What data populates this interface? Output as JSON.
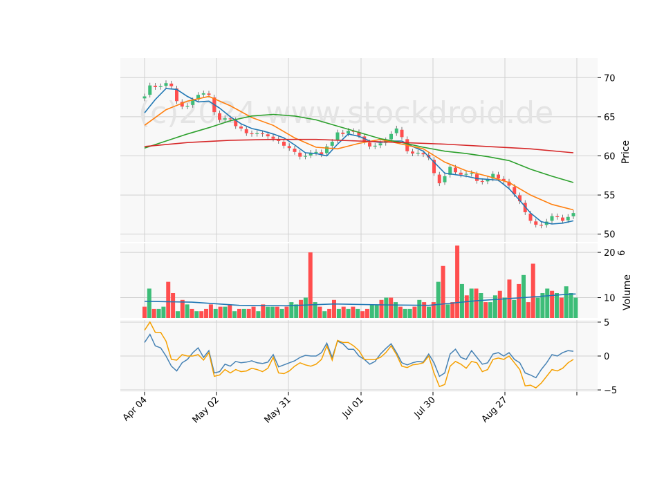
{
  "watermark": "(c)2024 www.stockdroid.de",
  "colors": {
    "up": "#3dbd78",
    "down": "#ff4e4e",
    "ma_short": "#1f77b4",
    "ma_mid": "#ff7f0e",
    "ma_long": "#2ca02c",
    "ma_200": "#d62728",
    "vol_ma": "#1f77b4",
    "osc_a": "#4682b4",
    "osc_b": "#f5a000",
    "grid": "#d0d0d0",
    "panel": "#f8f8f8"
  },
  "chart_data": [
    {
      "type": "candlestick",
      "ylabel": "Price",
      "ylim": [
        49,
        72.5
      ],
      "yticks": [
        50,
        55,
        60,
        65,
        70
      ],
      "x_tick_labels": [
        "Apr 04",
        "May 02",
        "May 31",
        "Jul 01",
        "Jul 30",
        "Aug 27"
      ],
      "grid": true,
      "ohlc_points": [
        [
          0,
          67.6
        ],
        [
          2,
          69.0
        ],
        [
          4,
          68.8
        ],
        [
          6,
          68.9
        ],
        [
          8,
          69.3
        ],
        [
          10,
          68.9
        ],
        [
          12,
          67.0
        ],
        [
          14,
          66.3
        ],
        [
          16,
          66.4
        ],
        [
          18,
          67.1
        ],
        [
          20,
          67.8
        ],
        [
          22,
          68.0
        ],
        [
          24,
          67.8
        ],
        [
          26,
          65.6
        ],
        [
          28,
          64.6
        ],
        [
          30,
          64.8
        ],
        [
          32,
          64.7
        ],
        [
          34,
          63.8
        ],
        [
          36,
          63.5
        ],
        [
          38,
          62.9
        ],
        [
          40,
          62.8
        ],
        [
          42,
          62.9
        ],
        [
          44,
          62.8
        ],
        [
          46,
          62.5
        ],
        [
          48,
          62.2
        ],
        [
          50,
          61.9
        ],
        [
          52,
          61.3
        ],
        [
          54,
          61.0
        ],
        [
          56,
          60.5
        ],
        [
          58,
          59.9
        ],
        [
          60,
          60.0
        ],
        [
          62,
          60.4
        ],
        [
          64,
          60.5
        ],
        [
          66,
          60.2
        ],
        [
          68,
          61.2
        ],
        [
          70,
          61.8
        ],
        [
          72,
          63.0
        ],
        [
          74,
          62.8
        ],
        [
          76,
          63.2
        ],
        [
          78,
          63.1
        ],
        [
          80,
          62.6
        ],
        [
          82,
          61.8
        ],
        [
          84,
          61.2
        ],
        [
          86,
          61.3
        ],
        [
          88,
          61.6
        ],
        [
          90,
          62.0
        ],
        [
          92,
          62.8
        ],
        [
          94,
          63.5
        ],
        [
          96,
          62.4
        ],
        [
          98,
          60.6
        ],
        [
          100,
          60.3
        ],
        [
          102,
          60.4
        ],
        [
          104,
          60.2
        ],
        [
          106,
          59.8
        ],
        [
          108,
          57.8
        ],
        [
          110,
          56.5
        ],
        [
          112,
          57.4
        ],
        [
          114,
          58.6
        ],
        [
          116,
          57.9
        ],
        [
          118,
          57.6
        ],
        [
          120,
          57.7
        ],
        [
          122,
          57.8
        ],
        [
          124,
          56.8
        ],
        [
          126,
          56.7
        ],
        [
          128,
          57.0
        ],
        [
          130,
          57.7
        ],
        [
          132,
          57.1
        ],
        [
          134,
          56.8
        ],
        [
          136,
          56.2
        ],
        [
          138,
          55.1
        ],
        [
          140,
          54.2
        ],
        [
          142,
          52.8
        ],
        [
          144,
          51.7
        ],
        [
          146,
          51.2
        ],
        [
          148,
          51.1
        ],
        [
          150,
          51.6
        ],
        [
          152,
          52.3
        ],
        [
          154,
          52.2
        ],
        [
          156,
          51.7
        ],
        [
          158,
          52.2
        ],
        [
          160,
          52.7
        ]
      ],
      "series": [
        {
          "name": "",
          "color_key": "ma_short",
          "x": [
            0,
            4,
            8,
            12,
            16,
            20,
            24,
            28,
            32,
            36,
            40,
            44,
            48,
            52,
            56,
            60,
            64,
            68,
            72,
            76,
            80,
            84,
            88,
            92,
            96,
            100,
            104,
            108,
            112,
            116,
            120,
            124,
            128,
            132,
            136,
            140,
            144,
            148,
            152,
            156,
            160
          ],
          "values": [
            65.5,
            67.2,
            68.6,
            68.5,
            67.6,
            66.9,
            67.0,
            66.1,
            65.0,
            64.1,
            63.5,
            63.2,
            62.8,
            62.3,
            61.4,
            60.4,
            60.3,
            60.0,
            61.5,
            62.8,
            62.5,
            61.9,
            61.7,
            61.9,
            61.9,
            61.2,
            60.6,
            59.2,
            57.8,
            57.6,
            57.4,
            57.1,
            57.0,
            56.9,
            55.8,
            54.3,
            52.7,
            51.6,
            51.3,
            51.4,
            51.7
          ]
        },
        {
          "name": "",
          "color_key": "ma_mid",
          "x": [
            0,
            8,
            16,
            24,
            32,
            40,
            48,
            56,
            64,
            72,
            80,
            88,
            96,
            104,
            112,
            120,
            128,
            136,
            144,
            152,
            160
          ],
          "values": [
            63.9,
            65.9,
            67.0,
            67.6,
            66.4,
            64.9,
            63.9,
            62.3,
            61.1,
            60.9,
            61.6,
            62.1,
            61.5,
            60.9,
            59.2,
            58.1,
            57.4,
            56.6,
            55.0,
            53.8,
            53.1
          ]
        },
        {
          "name": "",
          "color_key": "ma_long",
          "x": [
            0,
            8,
            16,
            24,
            32,
            40,
            48,
            56,
            64,
            72,
            80,
            88,
            96,
            104,
            112,
            120,
            128,
            136,
            144,
            152,
            160
          ],
          "values": [
            61.0,
            61.9,
            62.8,
            63.6,
            64.5,
            65.1,
            65.3,
            65.1,
            64.6,
            63.8,
            63.0,
            62.2,
            61.7,
            61.1,
            60.6,
            60.3,
            59.9,
            59.4,
            58.3,
            57.4,
            56.6
          ]
        },
        {
          "name": "",
          "color_key": "ma_200",
          "x": [
            0,
            16,
            32,
            48,
            64,
            80,
            96,
            112,
            128,
            144,
            160
          ],
          "values": [
            61.2,
            61.7,
            62.0,
            62.1,
            62.1,
            61.9,
            61.7,
            61.5,
            61.2,
            60.9,
            60.4
          ]
        }
      ]
    },
    {
      "type": "bar",
      "ylabel": "Volume",
      "ylabel_exp": "6",
      "ylim": [
        5.5,
        22
      ],
      "yticks": [
        10,
        20
      ],
      "values": [
        8,
        12,
        7.5,
        7.5,
        8,
        13.5,
        11,
        7,
        9.5,
        8.5,
        7.5,
        7,
        7,
        7.5,
        8.5,
        7.5,
        8,
        8,
        8.5,
        7,
        7.5,
        7.5,
        7.5,
        8,
        7,
        8.5,
        8,
        8,
        8,
        7.5,
        8,
        9,
        8.5,
        9.5,
        10,
        20,
        9,
        8,
        7,
        7.5,
        9.5,
        7.5,
        8,
        7.5,
        8,
        7.5,
        7,
        7.5,
        8.5,
        8.5,
        9.5,
        10,
        10,
        9,
        8,
        7.5,
        7.5,
        8,
        9.5,
        9,
        8,
        9,
        13.5,
        17,
        8.5,
        9,
        21.5,
        13,
        10.5,
        12,
        12,
        11,
        9,
        9,
        10.5,
        11.5,
        10,
        14,
        9.5,
        13,
        15,
        9,
        17.5,
        10,
        11,
        12,
        11.5,
        11,
        10,
        12.5,
        11,
        10
      ],
      "up": [
        0,
        1,
        0,
        1,
        1,
        0,
        0,
        1,
        0,
        1,
        0,
        1,
        0,
        0,
        0,
        1,
        0,
        1,
        0,
        1,
        0,
        1,
        0,
        0,
        1,
        0,
        1,
        1,
        0,
        1,
        0,
        1,
        1,
        0,
        1,
        0,
        1,
        0,
        1,
        0,
        0,
        1,
        0,
        1,
        0,
        1,
        0,
        0,
        1,
        1,
        0,
        1,
        0,
        1,
        0,
        1,
        1,
        0,
        1,
        0,
        1,
        0,
        1,
        0,
        1,
        0,
        0,
        1,
        0,
        1,
        0,
        1,
        0,
        1,
        1,
        0,
        1,
        0,
        1,
        0,
        1,
        0,
        0,
        1,
        1,
        1,
        0,
        1,
        0,
        1,
        1,
        1
      ],
      "series": [
        {
          "name": "",
          "color_key": "vol_ma",
          "x": [
            0,
            10,
            20,
            30,
            40,
            50,
            60,
            70,
            80,
            90,
            91
          ],
          "values": [
            9.2,
            9.0,
            8.3,
            8.2,
            8.6,
            8.4,
            8.3,
            9.3,
            10.0,
            10.8,
            10.8
          ]
        }
      ]
    },
    {
      "type": "line",
      "ylim": [
        -5.3,
        5.3
      ],
      "yticks": [
        -5,
        0,
        5
      ],
      "series": [
        {
          "name": "",
          "color_key": "osc_a",
          "x": [
            0,
            2,
            4,
            6,
            8,
            10,
            12,
            14,
            16,
            18,
            20,
            22,
            24,
            26,
            28,
            30,
            32,
            34,
            36,
            38,
            40,
            42,
            44,
            46,
            48,
            50,
            52,
            54,
            56,
            58,
            60,
            62,
            64,
            66,
            68,
            70,
            72,
            74,
            76,
            78,
            80,
            82,
            84,
            86,
            88,
            90,
            92,
            94,
            96,
            98,
            100,
            102,
            104,
            106,
            108,
            110,
            112,
            114,
            116,
            118,
            120,
            122,
            124,
            126,
            128,
            130,
            132,
            134,
            136,
            138,
            140,
            142,
            144,
            146,
            148,
            150,
            152,
            154,
            156,
            158,
            160
          ],
          "values": [
            2.0,
            3.2,
            1.5,
            1.2,
            0.0,
            -1.5,
            -2.2,
            -1.0,
            -0.5,
            0.5,
            1.2,
            -0.2,
            0.8,
            -2.5,
            -2.3,
            -1.2,
            -1.5,
            -0.8,
            -1.0,
            -0.9,
            -0.7,
            -1.0,
            -1.1,
            -0.9,
            0.2,
            -1.6,
            -1.3,
            -1.0,
            -0.7,
            -0.2,
            0.1,
            0.0,
            0.0,
            0.5,
            1.9,
            -0.2,
            2.2,
            1.8,
            1.0,
            1.0,
            0.0,
            -0.5,
            -1.2,
            -0.8,
            0.3,
            1.1,
            1.8,
            0.5,
            -1.0,
            -1.3,
            -1.0,
            -0.8,
            -0.9,
            0.3,
            -1.0,
            -3.0,
            -2.5,
            0.3,
            1.0,
            -0.2,
            -0.5,
            0.8,
            -0.2,
            -1.2,
            -1.0,
            0.3,
            0.5,
            0.0,
            0.5,
            -0.5,
            -1.0,
            -2.5,
            -2.8,
            -3.2,
            -2.0,
            -1.0,
            0.2,
            0.0,
            0.5,
            0.8,
            0.7
          ]
        },
        {
          "name": "",
          "color_key": "osc_b",
          "x": [
            0,
            2,
            4,
            6,
            8,
            10,
            12,
            14,
            16,
            18,
            20,
            22,
            24,
            26,
            28,
            30,
            32,
            34,
            36,
            38,
            40,
            42,
            44,
            46,
            48,
            50,
            52,
            54,
            56,
            58,
            60,
            62,
            64,
            66,
            68,
            70,
            72,
            74,
            76,
            78,
            80,
            82,
            84,
            86,
            88,
            90,
            92,
            94,
            96,
            98,
            100,
            102,
            104,
            106,
            108,
            110,
            112,
            114,
            116,
            118,
            120,
            122,
            124,
            126,
            128,
            130,
            132,
            134,
            136,
            138,
            140,
            142,
            144,
            146,
            148,
            150,
            152,
            154,
            156,
            158,
            160
          ],
          "values": [
            3.8,
            5.0,
            3.5,
            3.5,
            2.2,
            -0.5,
            -0.6,
            0.2,
            0.0,
            0.0,
            0.2,
            -0.6,
            0.5,
            -3.0,
            -2.8,
            -2.0,
            -2.5,
            -2.0,
            -2.3,
            -2.2,
            -1.8,
            -2.0,
            -2.3,
            -1.8,
            -0.2,
            -2.5,
            -2.6,
            -2.2,
            -1.5,
            -1.0,
            -1.3,
            -1.5,
            -1.2,
            -0.5,
            1.5,
            -0.6,
            2.3,
            2.0,
            2.0,
            1.5,
            0.8,
            -0.5,
            -0.5,
            -0.5,
            -0.2,
            0.5,
            1.5,
            0.2,
            -1.5,
            -1.7,
            -1.3,
            -1.2,
            -1.0,
            0.0,
            -2.5,
            -4.5,
            -4.2,
            -1.5,
            -0.8,
            -1.2,
            -1.8,
            -0.8,
            -1.0,
            -2.3,
            -2.0,
            -0.5,
            -0.3,
            -0.5,
            0.0,
            -1.0,
            -2.0,
            -4.4,
            -4.3,
            -4.7,
            -4.0,
            -3.0,
            -2.0,
            -2.2,
            -1.8,
            -1.0,
            -0.5
          ]
        }
      ]
    }
  ]
}
